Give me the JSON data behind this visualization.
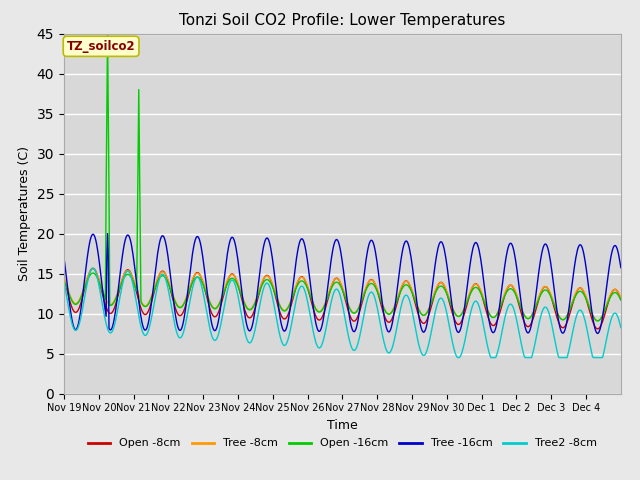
{
  "title": "Tonzi Soil CO2 Profile: Lower Temperatures",
  "xlabel": "Time",
  "ylabel": "Soil Temperatures (C)",
  "ylim": [
    0,
    45
  ],
  "yticks": [
    0,
    5,
    10,
    15,
    20,
    25,
    30,
    35,
    40,
    45
  ],
  "label_text": "TZ_soilco2",
  "bg_color": "#d8d8d8",
  "series": [
    {
      "label": "Open -8cm",
      "color": "#cc0000"
    },
    {
      "label": "Tree -8cm",
      "color": "#ff9900"
    },
    {
      "label": "Open -16cm",
      "color": "#00cc00"
    },
    {
      "label": "Tree -16cm",
      "color": "#0000cc"
    },
    {
      "label": "Tree2 -8cm",
      "color": "#00cccc"
    }
  ],
  "xtick_labels": [
    "Nov 19",
    "Nov 20",
    "Nov 21",
    "Nov 22",
    "Nov 23",
    "Nov 24",
    "Nov 25",
    "Nov 26",
    "Nov 27",
    "Nov 28",
    "Nov 29",
    "Nov 30",
    "Dec 1",
    "Dec 2",
    "Dec 3",
    "Dec 4"
  ],
  "n_days": 16,
  "pts_per_day": 48
}
